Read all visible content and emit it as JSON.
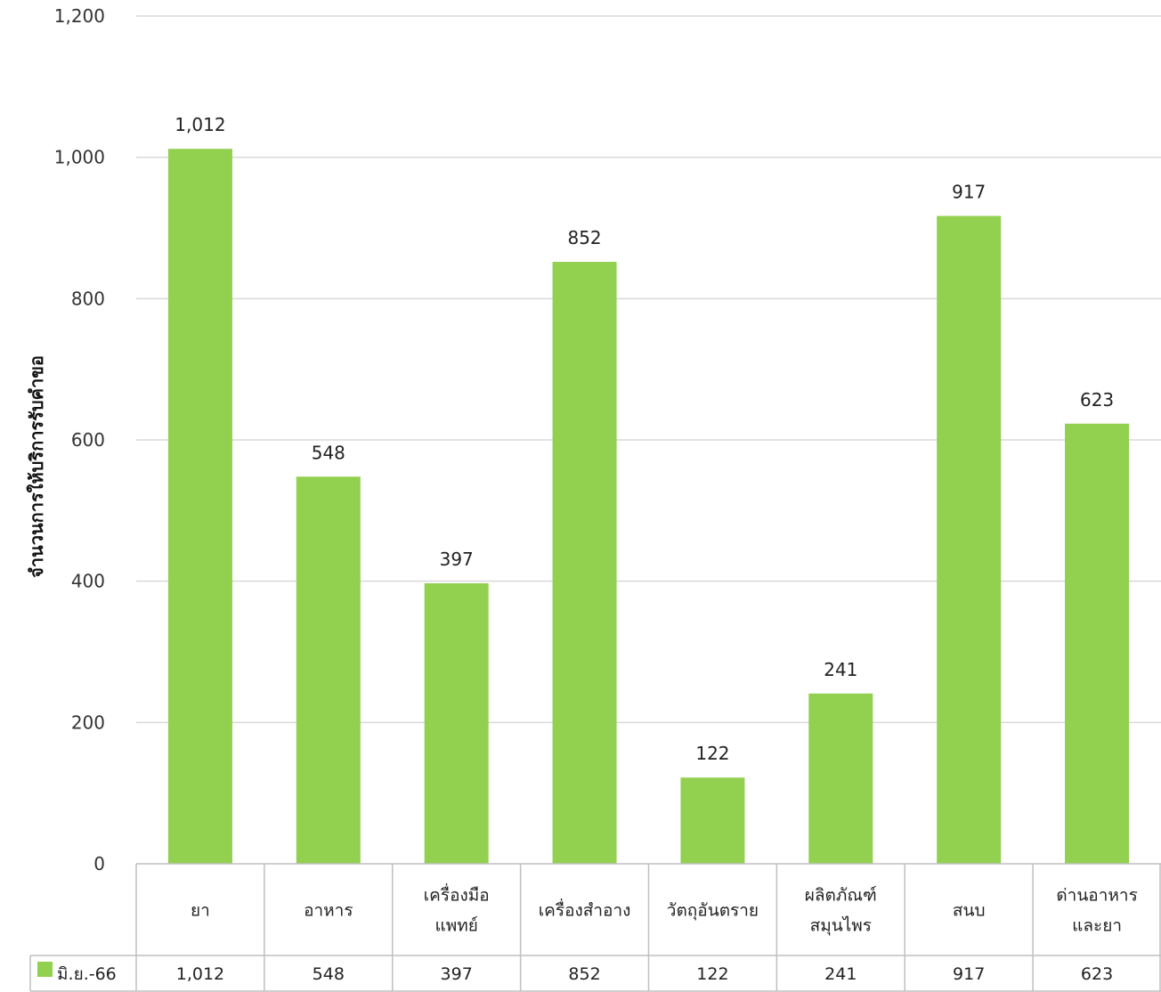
{
  "chart_data": {
    "type": "bar",
    "ylabel": "จำนวนการให้บริการรับคำขอ",
    "ylim": [
      0,
      1200
    ],
    "yticks": [
      "0",
      "200",
      "400",
      "600",
      "800",
      "1,000",
      "1,200"
    ],
    "categories": [
      [
        "ยา"
      ],
      [
        "อาหาร"
      ],
      [
        "เครื่องมือ",
        "แพทย์"
      ],
      [
        "เครื่องสำอาง"
      ],
      [
        "วัตถุอันตราย"
      ],
      [
        "ผลิตภัณฑ์",
        "สมุนไพร"
      ],
      [
        "สนบ"
      ],
      [
        "ด่านอาหาร",
        "และยา"
      ]
    ],
    "series": [
      {
        "name": "มิ.ย.-66",
        "values": [
          1012,
          548,
          397,
          852,
          122,
          241,
          917,
          623
        ],
        "labels": [
          "1,012",
          "548",
          "397",
          "852",
          "122",
          "241",
          "917",
          "623"
        ],
        "color": "#92d050"
      }
    ],
    "grid": true,
    "legend": "data-table-left"
  }
}
